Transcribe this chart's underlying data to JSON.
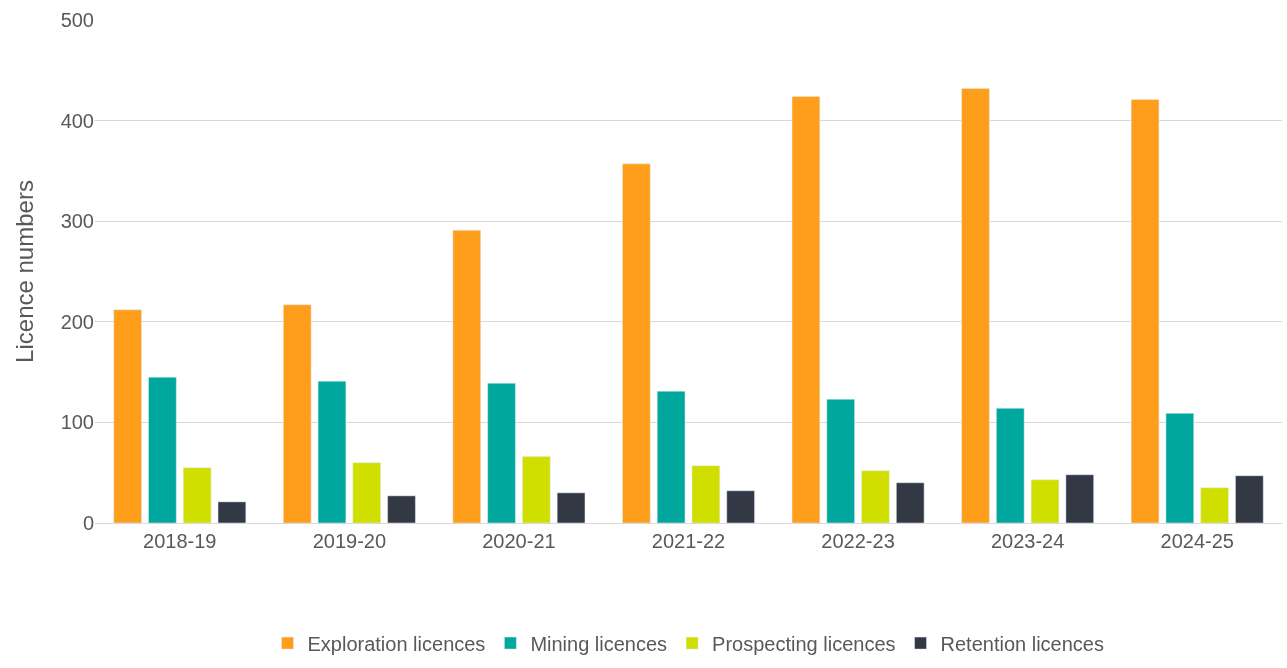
{
  "chart_data": {
    "type": "bar",
    "ylabel": "Licence numbers",
    "categories": [
      "2018-19",
      "2019-20",
      "2020-21",
      "2021-22",
      "2022-23",
      "2023-24",
      "2024-25"
    ],
    "series": [
      {
        "name": "Exploration licences",
        "color": "#ff9e1b",
        "values": [
          212,
          217,
          291,
          357,
          424,
          432,
          421
        ]
      },
      {
        "name": "Mining licences",
        "color": "#00a79d",
        "values": [
          145,
          141,
          139,
          131,
          123,
          114,
          109
        ]
      },
      {
        "name": "Prospecting licences",
        "color": "#d0df00",
        "values": [
          55,
          60,
          66,
          57,
          52,
          43,
          35
        ]
      },
      {
        "name": "Retention licences",
        "color": "#333845",
        "values": [
          21,
          27,
          30,
          32,
          40,
          48,
          47
        ]
      }
    ],
    "ylim": [
      0,
      500
    ],
    "yticks": [
      0,
      100,
      200,
      300,
      400,
      500
    ],
    "grid": "y",
    "legend": "bottom"
  }
}
